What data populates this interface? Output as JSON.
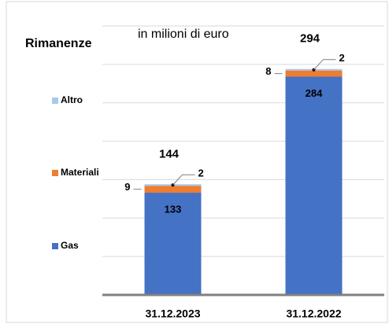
{
  "chart_data": {
    "type": "stacked_bar",
    "title": "Rimanenze",
    "subtitle": "in milioni di euro",
    "categories": [
      "31.12.2023",
      "31.12.2022"
    ],
    "series": [
      {
        "name": "Gas",
        "color": "#4472c4",
        "values": [
          133,
          284
        ]
      },
      {
        "name": "Materiali",
        "color": "#ed7d31",
        "values": [
          9,
          8
        ]
      },
      {
        "name": "Altro",
        "color": "#a9c9ea",
        "values": [
          2,
          2
        ]
      }
    ],
    "total_labels": [
      144,
      294
    ],
    "ylim": [
      0,
      350
    ],
    "yticks": [
      0,
      50,
      100,
      150,
      200,
      250,
      300,
      350
    ],
    "grid": true
  }
}
